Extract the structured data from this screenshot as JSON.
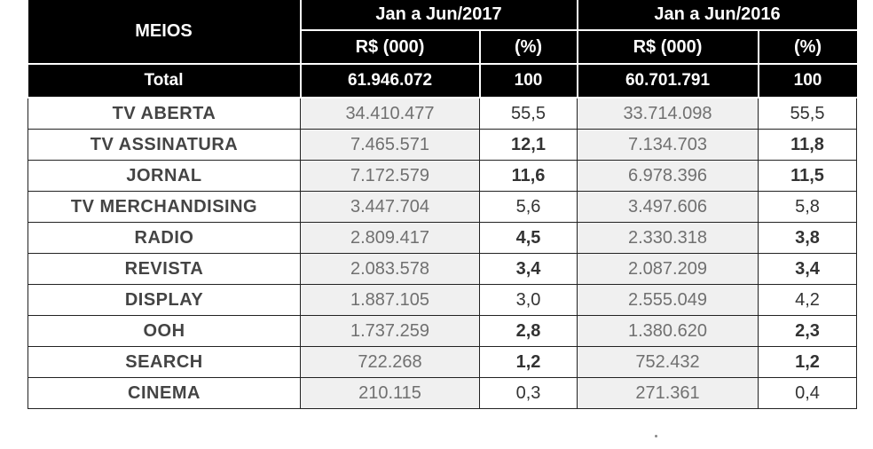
{
  "table": {
    "header": {
      "meios": "MEIOS",
      "period_2017": "Jan a Jun/2017",
      "period_2016": "Jan a Jun/2016",
      "value_label": "R$ (000)",
      "pct_label": "(%)"
    },
    "total": {
      "label": "Total",
      "v2017": "61.946.072",
      "p2017": "100",
      "v2016": "60.701.791",
      "p2016": "100"
    },
    "rows": [
      {
        "meio": "TV ABERTA",
        "v2017": "34.410.477",
        "p2017": "55,5",
        "v2016": "33.714.098",
        "p2016": "55,5"
      },
      {
        "meio": "TV ASSINATURA",
        "v2017": "7.465.571",
        "p2017": "12,1",
        "v2016": "7.134.703",
        "p2016": "11,8"
      },
      {
        "meio": "JORNAL",
        "v2017": "7.172.579",
        "p2017": "11,6",
        "v2016": "6.978.396",
        "p2016": "11,5"
      },
      {
        "meio": "TV MERCHANDISING",
        "v2017": "3.447.704",
        "p2017": "5,6",
        "v2016": "3.497.606",
        "p2016": "5,8"
      },
      {
        "meio": "RADIO",
        "v2017": "2.809.417",
        "p2017": "4,5",
        "v2016": "2.330.318",
        "p2016": "3,8"
      },
      {
        "meio": "REVISTA",
        "v2017": "2.083.578",
        "p2017": "3,4",
        "v2016": "2.087.209",
        "p2016": "3,4"
      },
      {
        "meio": "DISPLAY",
        "v2017": "1.887.105",
        "p2017": "3,0",
        "v2016": "2.555.049",
        "p2016": "4,2"
      },
      {
        "meio": "OOH",
        "v2017": "1.737.259",
        "p2017": "2,8",
        "v2016": "1.380.620",
        "p2016": "2,3"
      },
      {
        "meio": "SEARCH",
        "v2017": "722.268",
        "p2017": "1,2",
        "v2016": "752.432",
        "p2016": "1,2"
      },
      {
        "meio": "CINEMA",
        "v2017": "210.115",
        "p2017": "0,3",
        "v2016": "271.361",
        "p2016": "0,4"
      }
    ]
  }
}
